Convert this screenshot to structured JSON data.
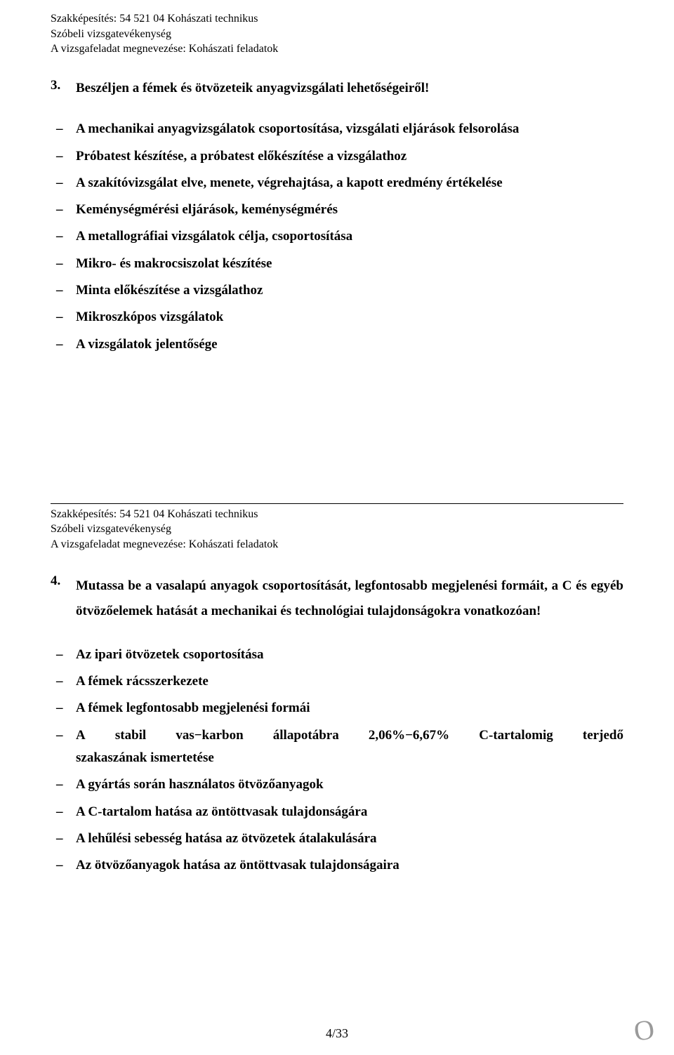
{
  "header": {
    "line1": "Szakképesítés: 54 521 04 Kohászati technikus",
    "line2": "Szóbeli vizsgatevékenység",
    "line3": "A vizsgafeladat megnevezése: Kohászati feladatok"
  },
  "section3": {
    "number": "3.",
    "title": "Beszéljen a fémek és ötvözeteik anyagvizsgálati lehetőségeiről!",
    "items": [
      "A mechanikai anyagvizsgálatok csoportosítása, vizsgálati eljárások felsorolása",
      "Próbatest készítése, a próbatest előkészítése a vizsgálathoz",
      "A szakítóvizsgálat elve, menete, végrehajtása, a kapott eredmény értékelése",
      "Keménységmérési eljárások, keménységmérés",
      "A metallográfiai vizsgálatok célja, csoportosítása",
      "Mikro- és makrocsiszolat készítése",
      "Minta előkészítése a vizsgálathoz",
      "Mikroszkópos vizsgálatok",
      "A vizsgálatok jelentősége"
    ]
  },
  "section4": {
    "number": "4.",
    "title": "Mutassa be a vasalapú anyagok csoportosítását, legfontosabb megjelenési formáit, a C és egyéb ötvözőelemek hatását a mechanikai és technológiai tulajdonságokra vonatkozóan!",
    "items": [
      "Az ipari ötvözetek csoportosítása",
      "A fémek rácsszerkezete",
      "A fémek legfontosabb megjelenési formái",
      "",
      "A gyártás során használatos ötvözőanyagok",
      "A C-tartalom hatása az öntöttvasak tulajdonságára",
      "A lehűlési sebesség hatása az ötvözetek átalakulására",
      "Az ötvözőanyagok hatása az öntöttvasak tulajdonságaira"
    ],
    "stabil": {
      "parts": [
        "A",
        "stabil",
        "vas−karbon",
        "állapotábra",
        "2,06%−6,67%",
        "C-tartalomig",
        "terjedő"
      ],
      "cont": "szakaszának ismertetése"
    }
  },
  "pagenum": "4/33",
  "scribble": "O"
}
